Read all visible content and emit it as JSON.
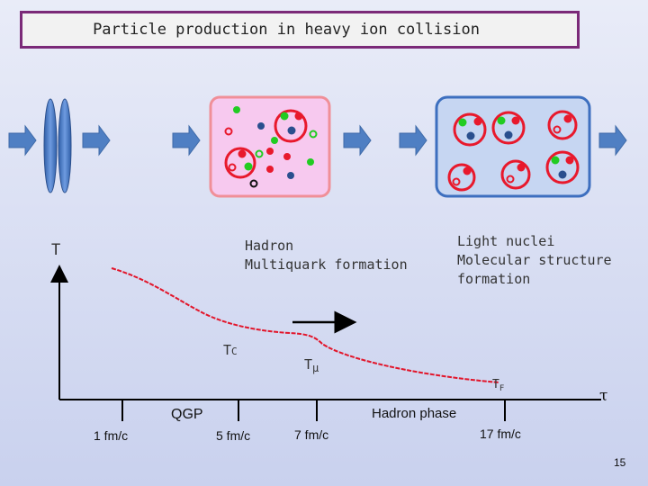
{
  "title": "Particle production in heavy ion collision",
  "axis": {
    "y_label": "T"
  },
  "labels": {
    "hadron_line1": "Hadron",
    "hadron_line2": "Multiquark formation",
    "light_line1": "Light nuclei",
    "light_line2": "Molecular structure",
    "light_line3": "formation",
    "tc_main": "T",
    "tc_sub": "C",
    "tmu_main": "T",
    "tmu_sub": "μ",
    "tf_main": "T",
    "tf_sub": "F",
    "tau": "τ"
  },
  "phases": {
    "qgp": "QGP",
    "hadron": "Hadron phase"
  },
  "ticks": [
    "1 fm/c",
    "5 fm/c",
    "7 fm/c",
    "17 fm/c"
  ],
  "page_number": "15",
  "colors": {
    "arrow": "#4f7fc3",
    "curve": "#e2152a",
    "fireball_fill": "#f7c9ef",
    "fireball_border": "#f08f98",
    "hadron_box_fill": "#c6d6f2",
    "hadron_box_border": "#3d6fbf",
    "quark_red": "#e8192c",
    "quark_green": "#22cc22",
    "quark_blue": "#2a4f8e"
  }
}
